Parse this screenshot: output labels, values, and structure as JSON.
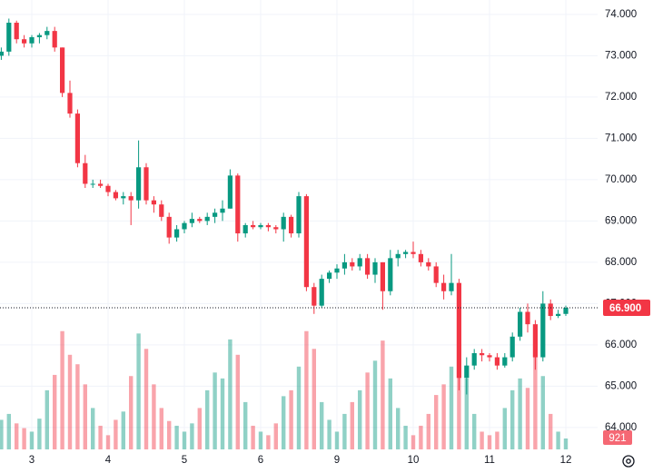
{
  "chart_data": {
    "type": "candlestick",
    "categories": [
      null,
      null,
      null,
      null,
      "3",
      null,
      null,
      null,
      null,
      null,
      null,
      null,
      null,
      null,
      "4",
      null,
      null,
      null,
      null,
      null,
      null,
      null,
      null,
      null,
      "5",
      null,
      null,
      null,
      null,
      null,
      null,
      null,
      null,
      null,
      "6",
      null,
      null,
      null,
      null,
      null,
      null,
      null,
      null,
      null,
      "9",
      null,
      null,
      null,
      null,
      null,
      null,
      null,
      null,
      null,
      "10",
      null,
      null,
      null,
      null,
      null,
      null,
      null,
      null,
      null,
      "11",
      null,
      null,
      null,
      null,
      null,
      null,
      null,
      null,
      null,
      "12"
    ],
    "open": [
      73.0,
      73.1,
      73.8,
      73.4,
      73.3,
      73.45,
      73.5,
      73.6,
      73.2,
      72.1,
      71.6,
      70.4,
      69.9,
      69.9,
      69.85,
      69.7,
      69.55,
      69.6,
      69.5,
      70.3,
      69.5,
      69.4,
      69.1,
      68.6,
      68.8,
      68.95,
      69.05,
      69.0,
      69.1,
      69.2,
      69.3,
      70.1,
      68.7,
      68.9,
      68.85,
      68.9,
      68.85,
      68.8,
      69.1,
      68.7,
      69.6,
      67.4,
      66.95,
      67.6,
      67.75,
      67.85,
      68.0,
      67.9,
      68.1,
      67.7,
      68.0,
      67.3,
      68.1,
      68.2,
      68.25,
      68.2,
      68.0,
      67.9,
      67.5,
      67.3,
      67.5,
      65.2,
      65.5,
      65.8,
      65.75,
      65.7,
      65.5,
      65.7,
      66.2,
      66.8,
      66.5,
      65.7,
      67.0,
      66.7,
      66.75
    ],
    "high": [
      73.2,
      73.9,
      73.85,
      73.5,
      73.5,
      73.55,
      73.7,
      73.7,
      73.2,
      72.4,
      71.7,
      70.6,
      70.0,
      70.0,
      69.9,
      69.75,
      69.7,
      69.7,
      70.95,
      70.4,
      69.6,
      69.5,
      69.2,
      68.9,
      69.0,
      69.2,
      69.1,
      69.2,
      69.3,
      69.5,
      70.25,
      70.15,
      68.95,
      69.0,
      68.95,
      68.95,
      68.9,
      69.2,
      69.15,
      69.7,
      69.65,
      67.5,
      67.7,
      67.8,
      67.95,
      68.2,
      68.1,
      68.2,
      68.2,
      68.1,
      68.0,
      68.3,
      68.3,
      68.3,
      68.5,
      68.3,
      68.1,
      68.0,
      67.7,
      68.2,
      67.6,
      65.7,
      65.9,
      65.9,
      65.8,
      65.8,
      65.8,
      66.3,
      66.9,
      67.0,
      66.6,
      67.3,
      67.1,
      66.85,
      66.95
    ],
    "low": [
      72.9,
      73.0,
      73.3,
      73.2,
      73.2,
      73.3,
      73.4,
      73.1,
      72.0,
      71.5,
      70.3,
      69.8,
      69.8,
      69.8,
      69.6,
      69.5,
      69.4,
      68.9,
      69.3,
      69.4,
      69.2,
      69.0,
      68.45,
      68.5,
      68.7,
      68.85,
      68.95,
      68.9,
      68.95,
      69.0,
      69.3,
      68.5,
      68.6,
      68.8,
      68.8,
      68.75,
      68.7,
      68.5,
      68.6,
      68.6,
      67.3,
      66.75,
      66.9,
      67.5,
      67.6,
      67.7,
      67.8,
      67.8,
      67.6,
      67.5,
      66.85,
      67.2,
      67.9,
      68.1,
      68.1,
      67.9,
      67.8,
      67.4,
      67.1,
      67.2,
      64.9,
      64.8,
      65.4,
      65.6,
      65.6,
      65.4,
      65.45,
      65.6,
      66.1,
      66.3,
      65.4,
      65.6,
      66.6,
      66.65,
      66.7
    ],
    "close": [
      73.1,
      73.8,
      73.4,
      73.3,
      73.45,
      73.5,
      73.6,
      73.2,
      72.1,
      71.6,
      70.4,
      69.9,
      69.9,
      69.85,
      69.7,
      69.55,
      69.6,
      69.5,
      70.3,
      69.5,
      69.4,
      69.1,
      68.6,
      68.8,
      68.95,
      69.05,
      69.0,
      69.1,
      69.2,
      69.3,
      70.1,
      68.7,
      68.9,
      68.85,
      68.9,
      68.85,
      68.8,
      69.1,
      68.7,
      69.6,
      67.4,
      66.95,
      67.6,
      67.75,
      67.85,
      68.0,
      67.9,
      68.1,
      67.7,
      68.0,
      67.3,
      68.1,
      68.2,
      68.25,
      68.2,
      68.0,
      67.9,
      67.5,
      67.3,
      67.5,
      65.2,
      65.5,
      65.8,
      65.75,
      65.7,
      65.5,
      65.7,
      66.2,
      66.8,
      66.5,
      65.7,
      67.0,
      66.7,
      66.75,
      66.9
    ],
    "volume": [
      2500,
      3000,
      2200,
      1800,
      1500,
      2600,
      5000,
      6300,
      10000,
      8000,
      7200,
      5500,
      3500,
      2000,
      1200,
      2500,
      3200,
      6200,
      9800,
      8500,
      5500,
      3500,
      2400,
      2000,
      1500,
      2200,
      3500,
      5000,
      6500,
      6000,
      9300,
      8000,
      4000,
      2000,
      1500,
      1200,
      2200,
      4500,
      5000,
      7000,
      10000,
      8500,
      4000,
      2500,
      1500,
      3000,
      4000,
      5000,
      6500,
      7500,
      9200,
      6000,
      3500,
      2000,
      1200,
      2000,
      3000,
      4600,
      5500,
      7000,
      9800,
      6000,
      3000,
      1500,
      1200,
      1500,
      3500,
      5000,
      6000,
      5200,
      9400,
      6200,
      3000,
      1500,
      921
    ],
    "up_color": "#089981",
    "down_color": "#f23645",
    "ylim": [
      63.47,
      74.35
    ],
    "yticks": [
      {
        "value": 64,
        "label": "64.000"
      },
      {
        "value": 65,
        "label": "65.000"
      },
      {
        "value": 66,
        "label": "66.000"
      },
      {
        "value": 67,
        "label": "67.000"
      },
      {
        "value": 68,
        "label": "68.000"
      },
      {
        "value": 69,
        "label": "69.000"
      },
      {
        "value": 70,
        "label": "70.000"
      },
      {
        "value": 71,
        "label": "71.000"
      },
      {
        "value": 72,
        "label": "72.000"
      },
      {
        "value": 73,
        "label": "73.000"
      },
      {
        "value": 74,
        "label": "74.000"
      }
    ],
    "volume_lim": [
      0,
      38000
    ],
    "last_price": {
      "value": 66.9,
      "label": "66.900"
    },
    "grid": true
  }
}
